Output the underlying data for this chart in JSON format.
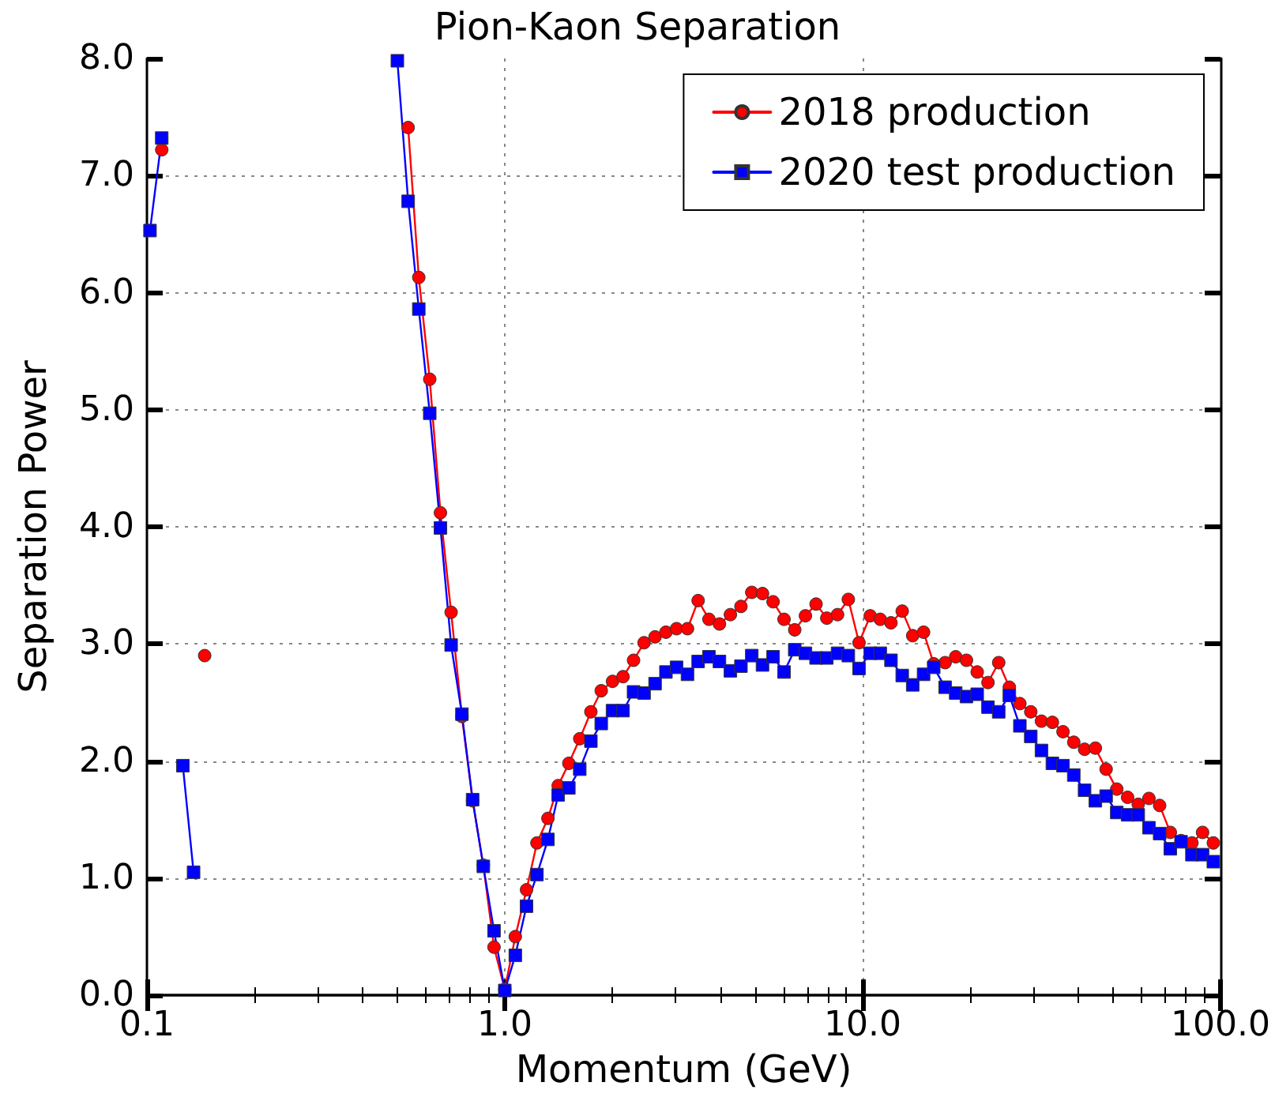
{
  "chart_data": {
    "type": "line",
    "title": "Pion-Kaon Separation",
    "xlabel": "Momentum (GeV)",
    "ylabel": "Separation Power",
    "x": [
      0.102,
      0.11,
      0.117,
      0.126,
      0.135,
      0.145,
      0.501,
      0.537,
      0.575,
      0.617,
      0.661,
      0.708,
      0.759,
      0.813,
      0.871,
      0.933,
      1.0,
      1.07,
      1.15,
      1.23,
      1.32,
      1.41,
      1.51,
      1.62,
      1.74,
      1.86,
      2.0,
      2.14,
      2.29,
      2.45,
      2.63,
      2.82,
      3.02,
      3.24,
      3.47,
      3.72,
      3.98,
      4.27,
      4.57,
      4.9,
      5.25,
      5.62,
      6.03,
      6.46,
      6.92,
      7.41,
      7.94,
      8.51,
      9.12,
      9.77,
      10.5,
      11.2,
      12.0,
      12.9,
      13.8,
      14.8,
      15.8,
      17.0,
      18.2,
      19.5,
      20.9,
      22.4,
      24.0,
      25.7,
      27.5,
      29.5,
      31.6,
      33.9,
      36.3,
      38.9,
      41.7,
      44.7,
      47.9,
      51.3,
      55.0,
      58.9,
      63.1,
      67.6,
      72.4,
      77.6,
      83.2,
      89.1,
      95.5
    ],
    "series": [
      {
        "name": "2018 production",
        "color": "#ff0000",
        "marker": "circle",
        "values": [
          null,
          7.22,
          null,
          null,
          null,
          2.9,
          null,
          7.41,
          6.13,
          5.26,
          4.12,
          3.27,
          2.38,
          1.66,
          1.11,
          0.41,
          0.05,
          0.5,
          0.9,
          1.3,
          1.51,
          1.79,
          1.98,
          2.19,
          2.42,
          2.6,
          2.68,
          2.72,
          2.86,
          3.01,
          3.06,
          3.1,
          3.13,
          3.13,
          3.37,
          3.21,
          3.17,
          3.25,
          3.32,
          3.44,
          3.43,
          3.36,
          3.21,
          3.12,
          3.24,
          3.34,
          3.22,
          3.25,
          3.38,
          3.01,
          3.24,
          3.21,
          3.18,
          3.28,
          3.07,
          3.1,
          2.83,
          2.84,
          2.89,
          2.86,
          2.76,
          2.67,
          2.84,
          2.63,
          2.49,
          2.42,
          2.34,
          2.33,
          2.25,
          2.16,
          2.1,
          2.11,
          1.93,
          1.76,
          1.69,
          1.63,
          1.68,
          1.62,
          1.39,
          1.32,
          1.3,
          1.39,
          1.3
        ]
      },
      {
        "name": "2020 test production",
        "color": "#0000ff",
        "marker": "square",
        "values": [
          6.53,
          7.32,
          null,
          1.96,
          1.05,
          null,
          7.98,
          6.78,
          5.86,
          4.97,
          3.99,
          2.99,
          2.4,
          1.67,
          1.1,
          0.55,
          0.04,
          0.34,
          0.76,
          1.03,
          1.33,
          1.71,
          1.77,
          1.93,
          2.17,
          2.32,
          2.43,
          2.43,
          2.59,
          2.58,
          2.66,
          2.76,
          2.8,
          2.74,
          2.85,
          2.89,
          2.85,
          2.77,
          2.81,
          2.9,
          2.82,
          2.89,
          2.76,
          2.95,
          2.92,
          2.88,
          2.88,
          2.92,
          2.9,
          2.79,
          2.92,
          2.92,
          2.86,
          2.73,
          2.65,
          2.74,
          2.8,
          2.63,
          2.58,
          2.55,
          2.57,
          2.46,
          2.42,
          2.56,
          2.3,
          2.21,
          2.09,
          1.98,
          1.96,
          1.88,
          1.75,
          1.66,
          1.7,
          1.56,
          1.54,
          1.54,
          1.43,
          1.38,
          1.25,
          1.31,
          1.2,
          1.2,
          1.14
        ]
      }
    ],
    "log": "x",
    "xlim": [
      0.1,
      100
    ],
    "xticks": [
      0.1,
      {
        "value": 1,
        "label": "1.0"
      },
      {
        "value": 10,
        "label": "10.0"
      },
      {
        "value": 100,
        "label": "100.0"
      }
    ],
    "ylim": [
      0,
      8
    ],
    "yticks": [
      {
        "value": 0,
        "label": "0.0"
      },
      {
        "value": 1,
        "label": "1.0"
      },
      {
        "value": 2,
        "label": "2.0"
      },
      {
        "value": 3,
        "label": "3.0"
      },
      {
        "value": 4,
        "label": "4.0"
      },
      {
        "value": 5,
        "label": "5.0"
      },
      {
        "value": 6,
        "label": "6.0"
      },
      {
        "value": 7,
        "label": "7.0"
      },
      {
        "value": 8,
        "label": "8.0"
      }
    ],
    "grid": true,
    "legend": "top right",
    "line_style": "solid"
  }
}
